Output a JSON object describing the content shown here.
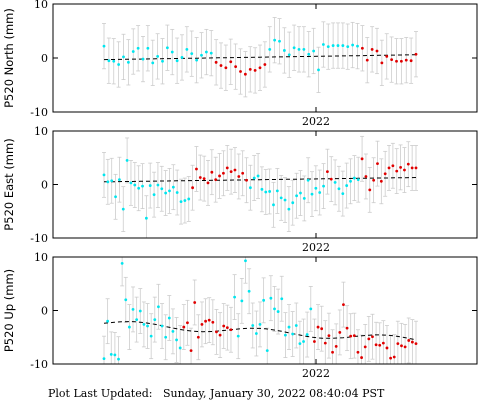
{
  "footer": {
    "label": "Plot Last Updated:",
    "value": "Sunday, January 30, 2022 08:40:04 PST"
  },
  "colors": {
    "cyan": "#00e5ee",
    "red": "#e00000",
    "errorbar": "#cccccc",
    "trend": "#000000"
  },
  "chart_data": [
    {
      "type": "scatter",
      "ylabel": "P520 North (mm)",
      "ylim": [
        -10,
        10
      ],
      "yticks": [
        10,
        0,
        -10
      ],
      "xtick_label": "2022",
      "trend": [
        -0.3,
        0.6
      ],
      "points": [
        [
          2.2,
          "c"
        ],
        [
          -0.5,
          "c"
        ],
        [
          -0.6,
          "c"
        ],
        [
          -1.2,
          "c"
        ],
        [
          0.2,
          "c"
        ],
        [
          -0.8,
          "c"
        ],
        [
          1.2,
          "c"
        ],
        [
          1.8,
          "c"
        ],
        [
          -0.2,
          "c"
        ],
        [
          1.8,
          "c"
        ],
        [
          -0.9,
          "c"
        ],
        [
          0.3,
          "c"
        ],
        [
          -0.6,
          "c"
        ],
        [
          1.9,
          "c"
        ],
        [
          1.1,
          "c"
        ],
        [
          -0.5,
          "c"
        ],
        [
          0.1,
          "c"
        ],
        [
          1.6,
          "c"
        ],
        [
          0.8,
          "c"
        ],
        [
          -0.4,
          "c"
        ],
        [
          0.5,
          "c"
        ],
        [
          1.1,
          "c"
        ],
        [
          0.9,
          "c"
        ],
        [
          -0.8,
          "r"
        ],
        [
          -1.4,
          "r"
        ],
        [
          -1.8,
          "r"
        ],
        [
          -0.7,
          "r"
        ],
        [
          -1.6,
          "r"
        ],
        [
          -2.5,
          "r"
        ],
        [
          -3.0,
          "r"
        ],
        [
          -2.1,
          "r"
        ],
        [
          -2.3,
          "r"
        ],
        [
          -1.8,
          "r"
        ],
        [
          -1.2,
          "r"
        ],
        [
          1.6,
          "c"
        ],
        [
          3.3,
          "c"
        ],
        [
          3.1,
          "c"
        ],
        [
          1.4,
          "c"
        ],
        [
          0.6,
          "c"
        ],
        [
          1.9,
          "c"
        ],
        [
          1.6,
          "c"
        ],
        [
          1.6,
          "c"
        ],
        [
          0.7,
          "c"
        ],
        [
          1.3,
          "c"
        ],
        [
          -2.2,
          "c"
        ],
        [
          2.5,
          "c"
        ],
        [
          2.1,
          "c"
        ],
        [
          2.3,
          "c"
        ],
        [
          2.3,
          "c"
        ],
        [
          2.3,
          "c"
        ],
        [
          2.1,
          "c"
        ],
        [
          2.4,
          "c"
        ],
        [
          2.2,
          "c"
        ],
        [
          1.8,
          "r"
        ],
        [
          -0.4,
          "r"
        ],
        [
          1.6,
          "r"
        ],
        [
          1.3,
          "r"
        ],
        [
          -0.9,
          "r"
        ],
        [
          0.3,
          "r"
        ],
        [
          -0.3,
          "r"
        ],
        [
          -0.6,
          "r"
        ],
        [
          -0.6,
          "r"
        ],
        [
          -0.4,
          "r"
        ],
        [
          -0.5,
          "r"
        ],
        [
          0.7,
          "r"
        ]
      ]
    },
    {
      "type": "scatter",
      "ylabel": "P520 East (mm)",
      "ylim": [
        -10,
        10
      ],
      "yticks": [
        10,
        0,
        -10
      ],
      "xtick_label": "2022",
      "trend": [
        0.5,
        1.3
      ],
      "points": [
        [
          1.8,
          "c"
        ],
        [
          0.5,
          "c"
        ],
        [
          0.7,
          "c"
        ],
        [
          -2.3,
          "c"
        ],
        [
          0.9,
          "c"
        ],
        [
          -4.6,
          "c"
        ],
        [
          4.5,
          "c"
        ],
        [
          0.3,
          "c"
        ],
        [
          -0.1,
          "c"
        ],
        [
          -0.7,
          "c"
        ],
        [
          -0.3,
          "c"
        ],
        [
          -6.3,
          "c"
        ],
        [
          -0.2,
          "c"
        ],
        [
          -1.9,
          "c"
        ],
        [
          -0.1,
          "c"
        ],
        [
          -0.8,
          "c"
        ],
        [
          -1.6,
          "c"
        ],
        [
          -1.2,
          "c"
        ],
        [
          -0.5,
          "c"
        ],
        [
          -1.5,
          "c"
        ],
        [
          -3.2,
          "c"
        ],
        [
          -3.0,
          "c"
        ],
        [
          -2.7,
          "c"
        ],
        [
          -0.6,
          "r"
        ],
        [
          2.9,
          "r"
        ],
        [
          1.3,
          "r"
        ],
        [
          1.1,
          "r"
        ],
        [
          0.3,
          "r"
        ],
        [
          2.3,
          "r"
        ],
        [
          0.9,
          "r"
        ],
        [
          1.6,
          "r"
        ],
        [
          2.1,
          "r"
        ],
        [
          3.1,
          "r"
        ],
        [
          2.4,
          "r"
        ],
        [
          2.7,
          "r"
        ],
        [
          1.5,
          "r"
        ],
        [
          2.1,
          "r"
        ],
        [
          0.8,
          "r"
        ],
        [
          -0.6,
          "c"
        ],
        [
          1.2,
          "c"
        ],
        [
          1.6,
          "c"
        ],
        [
          -0.9,
          "c"
        ],
        [
          -1.4,
          "c"
        ],
        [
          -1.3,
          "c"
        ],
        [
          -3.8,
          "c"
        ],
        [
          -1.2,
          "c"
        ],
        [
          -2.5,
          "c"
        ],
        [
          -2.9,
          "c"
        ],
        [
          -4.6,
          "c"
        ],
        [
          -3.4,
          "c"
        ],
        [
          -2.1,
          "c"
        ],
        [
          -1.6,
          "c"
        ],
        [
          -2.6,
          "c"
        ],
        [
          0.8,
          "c"
        ],
        [
          -1.8,
          "c"
        ],
        [
          -0.7,
          "c"
        ],
        [
          -1.5,
          "c"
        ],
        [
          -0.3,
          "c"
        ],
        [
          2.4,
          "r"
        ],
        [
          1.0,
          "r"
        ],
        [
          0.4,
          "c"
        ],
        [
          -0.8,
          "c"
        ],
        [
          -1.7,
          "c"
        ],
        [
          -0.2,
          "c"
        ],
        [
          0.6,
          "c"
        ],
        [
          1.2,
          "c"
        ],
        [
          0.9,
          "c"
        ],
        [
          4.8,
          "r"
        ],
        [
          1.5,
          "r"
        ],
        [
          -1.0,
          "r"
        ],
        [
          0.8,
          "r"
        ],
        [
          3.9,
          "r"
        ],
        [
          0.6,
          "r"
        ],
        [
          2.0,
          "r"
        ],
        [
          3.1,
          "r"
        ],
        [
          3.5,
          "r"
        ],
        [
          2.5,
          "r"
        ],
        [
          3.2,
          "r"
        ],
        [
          2.7,
          "r"
        ],
        [
          3.8,
          "r"
        ],
        [
          3.1,
          "r"
        ],
        [
          3.1,
          "r"
        ]
      ]
    },
    {
      "type": "scatter",
      "ylabel": "P520 Up (mm)",
      "ylim": [
        -10,
        10
      ],
      "yticks": [
        10,
        0,
        -10
      ],
      "xtick_label": "2022",
      "trend": [
        -2.4,
        -5.5
      ],
      "points": [
        [
          -9.0,
          "c"
        ],
        [
          -2.0,
          "c"
        ],
        [
          -8.2,
          "c"
        ],
        [
          -8.3,
          "c"
        ],
        [
          -9.1,
          "c"
        ],
        [
          8.8,
          "c"
        ],
        [
          2.0,
          "c"
        ],
        [
          -3.1,
          "c"
        ],
        [
          0.2,
          "c"
        ],
        [
          -1.7,
          "c"
        ],
        [
          -0.1,
          "c"
        ],
        [
          -2.6,
          "c"
        ],
        [
          -2.9,
          "c"
        ],
        [
          -4.8,
          "c"
        ],
        [
          -1.7,
          "c"
        ],
        [
          0.7,
          "c"
        ],
        [
          -2.9,
          "c"
        ],
        [
          -5.0,
          "c"
        ],
        [
          -1.4,
          "c"
        ],
        [
          -3.9,
          "c"
        ],
        [
          -5.5,
          "c"
        ],
        [
          -7.0,
          "c"
        ],
        [
          -3.1,
          "r"
        ],
        [
          -2.3,
          "r"
        ],
        [
          -7.5,
          "r"
        ],
        [
          1.5,
          "r"
        ],
        [
          -5.0,
          "r"
        ],
        [
          -2.6,
          "r"
        ],
        [
          -2.0,
          "r"
        ],
        [
          -1.8,
          "r"
        ],
        [
          -2.2,
          "r"
        ],
        [
          -4.0,
          "r"
        ],
        [
          -4.6,
          "r"
        ],
        [
          -2.9,
          "r"
        ],
        [
          -3.2,
          "r"
        ],
        [
          -3.6,
          "r"
        ],
        [
          2.5,
          "c"
        ],
        [
          -4.8,
          "c"
        ],
        [
          1.8,
          "c"
        ],
        [
          9.3,
          "c"
        ],
        [
          3.6,
          "c"
        ],
        [
          -2.8,
          "c"
        ],
        [
          -4.3,
          "c"
        ],
        [
          -2.6,
          "c"
        ],
        [
          1.9,
          "c"
        ],
        [
          -7.5,
          "c"
        ],
        [
          2.3,
          "c"
        ],
        [
          0.3,
          "c"
        ],
        [
          -0.2,
          "c"
        ],
        [
          2.2,
          "c"
        ],
        [
          -4.6,
          "c"
        ],
        [
          -3.1,
          "c"
        ],
        [
          -4.4,
          "c"
        ],
        [
          -2.8,
          "c"
        ],
        [
          -6.2,
          "c"
        ],
        [
          -5.8,
          "c"
        ],
        [
          -4.5,
          "c"
        ],
        [
          0.3,
          "c"
        ],
        [
          -5.8,
          "r"
        ],
        [
          -3.1,
          "r"
        ],
        [
          -3.4,
          "r"
        ],
        [
          -6.1,
          "r"
        ],
        [
          -4.7,
          "r"
        ],
        [
          -7.8,
          "r"
        ],
        [
          -6.7,
          "r"
        ],
        [
          -4.1,
          "r"
        ],
        [
          1.1,
          "r"
        ],
        [
          -3.3,
          "r"
        ],
        [
          -4.8,
          "r"
        ],
        [
          -4.7,
          "r"
        ],
        [
          -7.8,
          "r"
        ],
        [
          -8.8,
          "r"
        ],
        [
          -6.8,
          "r"
        ],
        [
          -5.3,
          "r"
        ],
        [
          -4.9,
          "r"
        ],
        [
          -6.4,
          "r"
        ],
        [
          -6.5,
          "r"
        ],
        [
          -6.1,
          "r"
        ],
        [
          -7.0,
          "r"
        ],
        [
          -8.9,
          "r"
        ],
        [
          -8.7,
          "r"
        ],
        [
          -6.2,
          "r"
        ],
        [
          -6.6,
          "r"
        ],
        [
          -6.8,
          "r"
        ],
        [
          -5.6,
          "r"
        ],
        [
          -5.9,
          "r"
        ],
        [
          -6.2,
          "r"
        ]
      ]
    }
  ]
}
